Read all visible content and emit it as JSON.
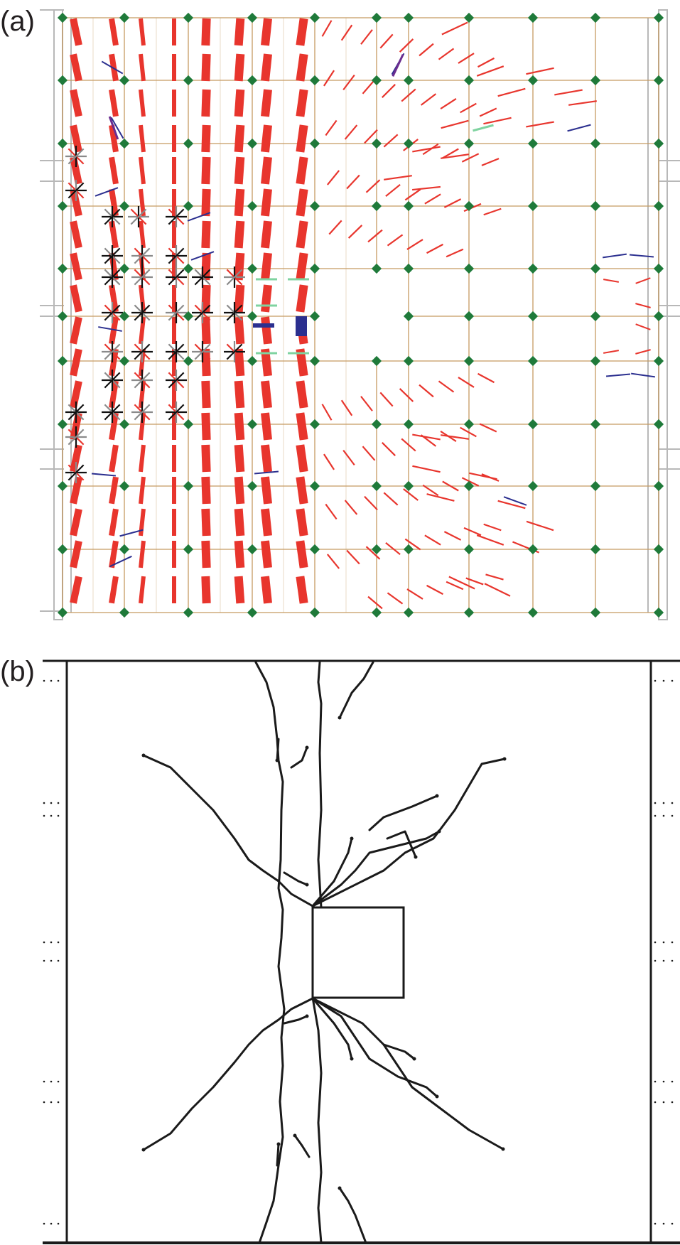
{
  "figure": {
    "panel_a": {
      "label": "(a)"
    },
    "panel_b": {
      "label": "(b)"
    }
  },
  "colors": {
    "mesh": "#c59a62",
    "frame": "#b8b8b8",
    "node": "#1f7a3a",
    "crack_open": "#e8352d",
    "crack_closed": "#2b2f8f",
    "crack_black": "#111111",
    "crack_gray": "#8a8a8a",
    "crack_green": "#7fd3a0",
    "crack_purple": "#6b2d8f",
    "line": "#1a1a1a"
  }
}
